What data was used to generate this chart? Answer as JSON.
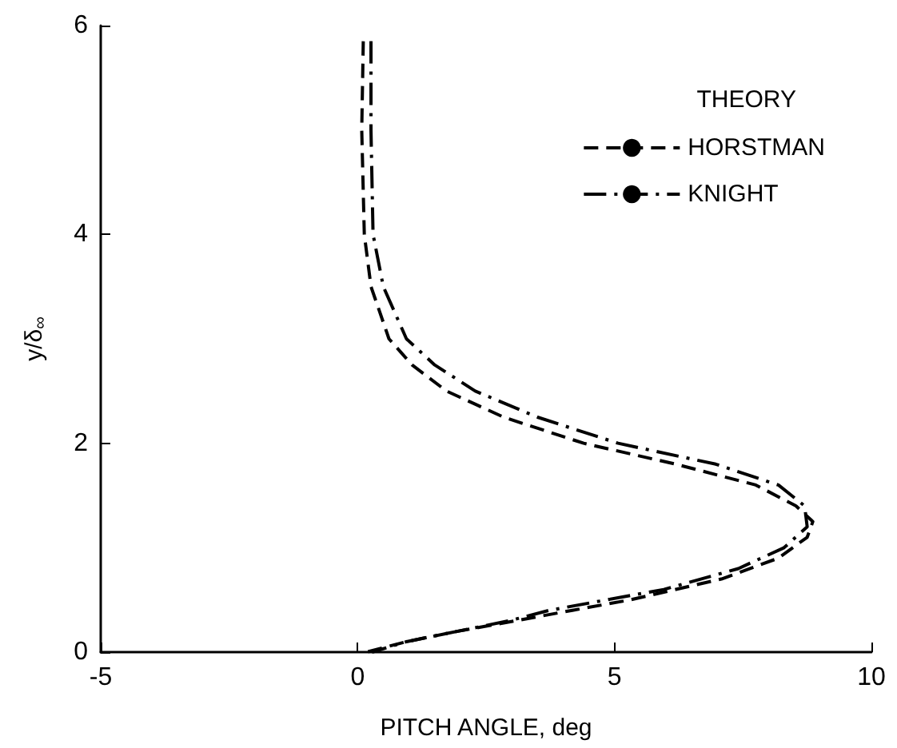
{
  "chart_data": {
    "type": "line",
    "xlabel": "PITCH ANGLE, deg",
    "ylabel": "y/δ$_{∞}$",
    "legend_title": "THEORY",
    "xlim": [
      -5,
      10
    ],
    "xticks": [
      -5,
      0,
      5,
      10
    ],
    "ylim": [
      0,
      6
    ],
    "yticks": [
      0,
      2,
      4,
      6
    ],
    "grid": false,
    "legend": "top right",
    "marker": "none",
    "series": [
      {
        "name": "HORSTMAN",
        "color": "#000000",
        "line_style": "dashed",
        "x": [
          0.11,
          0.08,
          0.13,
          0.26,
          0.61,
          1.06,
          1.73,
          2.84,
          4.4,
          6.19,
          7.75,
          8.53,
          8.86,
          8.75,
          8.19,
          7.08,
          5.3,
          4.18,
          3.07,
          1.95,
          0.95,
          0.17
        ],
        "values": [
          5.85,
          5.0,
          4.0,
          3.5,
          3.0,
          2.75,
          2.5,
          2.25,
          2.0,
          1.8,
          1.6,
          1.4,
          1.25,
          1.1,
          0.9,
          0.7,
          0.5,
          0.4,
          0.3,
          0.2,
          0.1,
          0.0
        ]
      },
      {
        "name": "KNIGHT",
        "color": "#000000",
        "line_style": "dashdot",
        "x": [
          0.26,
          0.26,
          0.3,
          0.5,
          0.95,
          1.5,
          2.29,
          3.5,
          5.07,
          6.97,
          8.19,
          8.7,
          8.75,
          8.3,
          7.41,
          5.96,
          3.73,
          2.95,
          1.95,
          0.95,
          0.28
        ],
        "values": [
          5.85,
          5.0,
          4.0,
          3.5,
          3.0,
          2.75,
          2.5,
          2.25,
          2.0,
          1.8,
          1.6,
          1.4,
          1.2,
          1.0,
          0.8,
          0.6,
          0.4,
          0.3,
          0.2,
          0.1,
          0.0
        ]
      }
    ]
  }
}
